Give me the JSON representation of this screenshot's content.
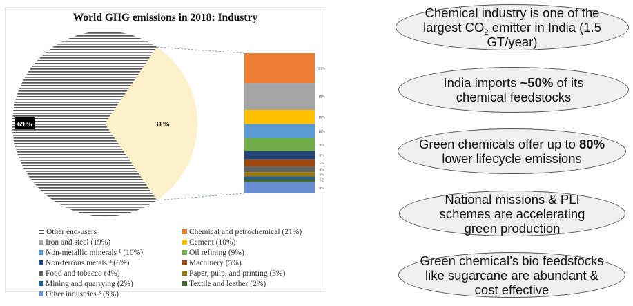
{
  "chart_data": {
    "type": "pie",
    "subtype": "pie-of-bar",
    "title": "World GHG emissions in 2018: Industry",
    "pie": {
      "slices": [
        {
          "name": "Other end-users",
          "value": 69,
          "label": "69%",
          "color": "#555555",
          "pattern": "horizontal-lines"
        },
        {
          "name": "Industry",
          "value": 31,
          "label": "31%",
          "color": "#fff0cc"
        }
      ]
    },
    "bar": {
      "segments": [
        {
          "name": "Chemical and petrochemical",
          "value": 21,
          "label": "21%",
          "color": "#ed7d31"
        },
        {
          "name": "Iron and steel",
          "value": 19,
          "label": "19%",
          "color": "#a5a5a5"
        },
        {
          "name": "Cement",
          "value": 10,
          "label": "10%",
          "color": "#ffc000"
        },
        {
          "name": "Non-metallic minerals",
          "value": 10,
          "label": "10%",
          "color": "#5b9bd5"
        },
        {
          "name": "Oil refining",
          "value": 9,
          "label": "9%",
          "color": "#70ad47"
        },
        {
          "name": "Non-ferrous metals",
          "value": 6,
          "label": "6%",
          "color": "#264478"
        },
        {
          "name": "Machinery",
          "value": 5,
          "label": "5%",
          "color": "#9e480e"
        },
        {
          "name": "Food and tobacco",
          "value": 4,
          "label": "4%",
          "color": "#636363"
        },
        {
          "name": "Paper, pulp, and printing",
          "value": 3,
          "label": "3%",
          "color": "#997300"
        },
        {
          "name": "Mining and quarrying",
          "value": 2,
          "label": "2%",
          "color": "#255e91"
        },
        {
          "name": "Textile and leather",
          "value": 2,
          "label": "2%",
          "color": "#43682b"
        },
        {
          "name": "Other industries",
          "value": 8,
          "label": "8%",
          "color": "#698ed0"
        }
      ]
    },
    "legend": {
      "placement": "bottom",
      "items": [
        {
          "label": "Other end-users",
          "swatch": "lines",
          "color": "#555555"
        },
        {
          "label": "Chemical and petrochemical (21%)",
          "color": "#ed7d31"
        },
        {
          "label": "Iron and steel (19%)",
          "color": "#a5a5a5"
        },
        {
          "label": "Cement (10%)",
          "color": "#ffc000"
        },
        {
          "label": "Non-metallic minerals ¹ (10%)",
          "color": "#5b9bd5"
        },
        {
          "label": "Oil refining (9%)",
          "color": "#70ad47"
        },
        {
          "label": "Non-ferrous metals ² (6%)",
          "color": "#264478"
        },
        {
          "label": "Machinery (5%)",
          "color": "#9e480e"
        },
        {
          "label": "Food and tobacco (4%)",
          "color": "#636363"
        },
        {
          "label": "Paper, pulp, and printing (3%)",
          "color": "#997300"
        },
        {
          "label": "Mining and quarrying (2%)",
          "color": "#255e91"
        },
        {
          "label": "Textile and leather (2%)",
          "color": "#43682b"
        },
        {
          "label": "Other industries ³ (8%)",
          "color": "#698ed0"
        }
      ]
    }
  },
  "callouts": [
    {
      "parts": [
        {
          "t": "Chemical industry is one of the largest CO"
        },
        {
          "t": "2",
          "sub": true
        },
        {
          "t": " emitter in India (1.5 GT/year)"
        }
      ]
    },
    {
      "parts": [
        {
          "t": "India imports "
        },
        {
          "t": "~50%",
          "bold": true
        },
        {
          "t": " of its chemical feedstocks"
        }
      ]
    },
    {
      "parts": [
        {
          "t": "Green chemicals offer up to "
        },
        {
          "t": "80%",
          "bold": true
        },
        {
          "t": " lower lifecycle emissions"
        }
      ]
    },
    {
      "parts": [
        {
          "t": "National missions & PLI schemes are accelerating green production"
        }
      ]
    },
    {
      "parts": [
        {
          "t": "Green chemical’s bio feedstocks like sugarcane are abundant & cost effective"
        }
      ]
    }
  ],
  "callout_text": [
    "Chemical industry is one of the largest CO2 emitter in India (1.5 GT/year)",
    "India imports ~50% of its chemical feedstocks",
    "Green chemicals offer up to 80% lower lifecycle emissions",
    "National missions & PLI schemes are accelerating green production",
    "Green chemical’s bio feedstocks like sugarcane are abundant & cost effective"
  ]
}
